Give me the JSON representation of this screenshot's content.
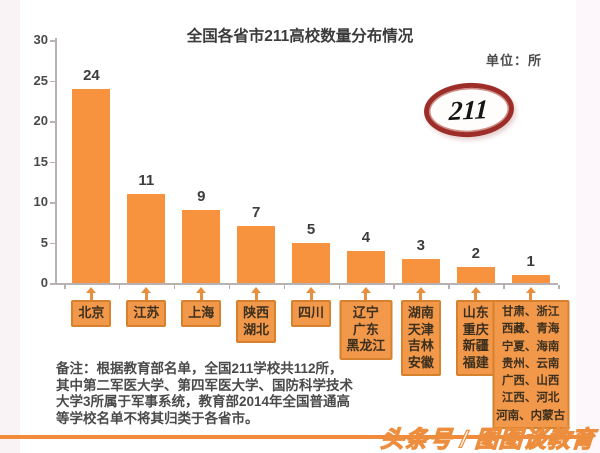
{
  "header": {
    "title": "全国各省市211高校数量分布情况",
    "unit_label": "单位：所",
    "badge": "211"
  },
  "chart_data": {
    "type": "bar",
    "title": "全国各省市211高校数量分布情况",
    "unit": "所",
    "categories": [
      [
        "北京"
      ],
      [
        "江苏"
      ],
      [
        "上海"
      ],
      [
        "陕西",
        "湖北"
      ],
      [
        "四川"
      ],
      [
        "辽宁",
        "广东",
        "黑龙江"
      ],
      [
        "湖南",
        "天津",
        "吉林",
        "安徽"
      ],
      [
        "山东",
        "重庆",
        "新疆",
        "福建"
      ],
      [
        "甘肃、浙江",
        "西藏、青海",
        "宁夏、海南",
        "贵州、云南",
        "广西、山西",
        "江西、河北",
        "河南、内蒙古"
      ]
    ],
    "values": [
      24,
      11,
      9,
      7,
      5,
      4,
      3,
      2,
      1
    ],
    "ylim": [
      0,
      30
    ],
    "yticks": [
      0,
      5,
      10,
      15,
      20,
      25,
      30
    ],
    "xlabel": "",
    "ylabel": "",
    "grid": false,
    "legend": false,
    "bar_color": "#F7923E",
    "label_box_color": "#F1984A",
    "label_box_border": "#D6812E"
  },
  "footnote": "备注：根据教育部名单，全国211学校共112所，其中第二军医大学、第四军医大学、国防科学技术大学3所属于军事系统，教育部2014年全国普通高等学校名单不将其归类于各省市。",
  "watermark": "头条号 / 图图谈教育"
}
